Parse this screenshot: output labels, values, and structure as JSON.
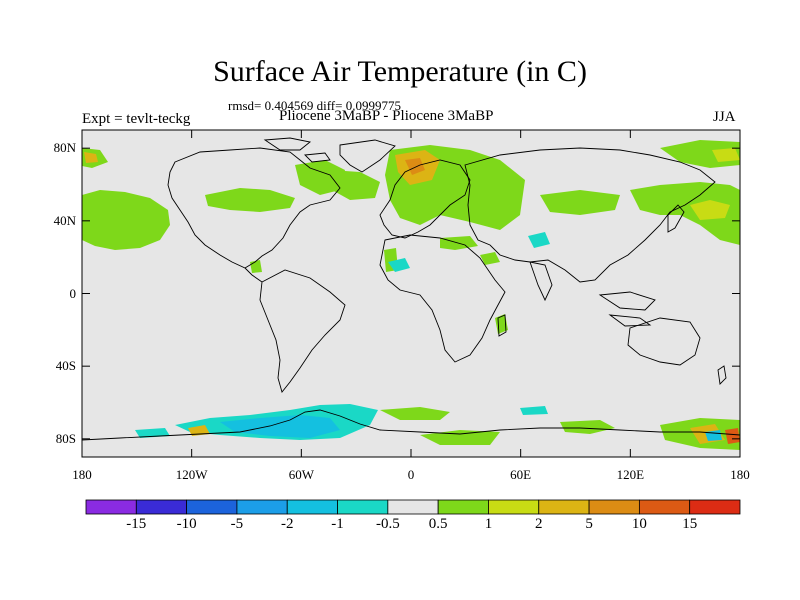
{
  "header": {
    "title": "Surface Air Temperature (in C)",
    "stats": "rmsd= 0.404569 diff= 0.0999775",
    "experiment": "Expt = tevlt-teckg",
    "comparison": "Pliocene   3MaBP - Pliocene   3MaBP",
    "season": "JJA"
  },
  "map": {
    "projection": "cylindrical-equidistant",
    "background_color": "#e6e6e6",
    "lat_range": [
      -90,
      90
    ],
    "lon_range": [
      -180,
      180
    ],
    "lat_ticks": [
      {
        "value": 80,
        "label": "80N"
      },
      {
        "value": 40,
        "label": "40N"
      },
      {
        "value": 0,
        "label": "0"
      },
      {
        "value": -40,
        "label": "40S"
      },
      {
        "value": -80,
        "label": "80S"
      }
    ],
    "lon_ticks": [
      {
        "value": -180,
        "label": "180"
      },
      {
        "value": -120,
        "label": "120W"
      },
      {
        "value": -60,
        "label": "60W"
      },
      {
        "value": 0,
        "label": "0"
      },
      {
        "value": 60,
        "label": "60E"
      },
      {
        "value": 120,
        "label": "120E"
      },
      {
        "value": 180,
        "label": "180"
      }
    ]
  },
  "colorbar": {
    "colors": [
      "#8a2be2",
      "#3a2bd6",
      "#1c63dc",
      "#1c9ee8",
      "#14c0e0",
      "#1ad8c6",
      "#e6e6e6",
      "#7ed81a",
      "#c8dc14",
      "#dcb414",
      "#dc8c14",
      "#dc5a14",
      "#dc2c14"
    ],
    "labels": [
      "-15",
      "-10",
      "-5",
      "-2",
      "-1",
      "-0.5",
      "0.5",
      "1",
      "2",
      "5",
      "10",
      "15"
    ]
  }
}
